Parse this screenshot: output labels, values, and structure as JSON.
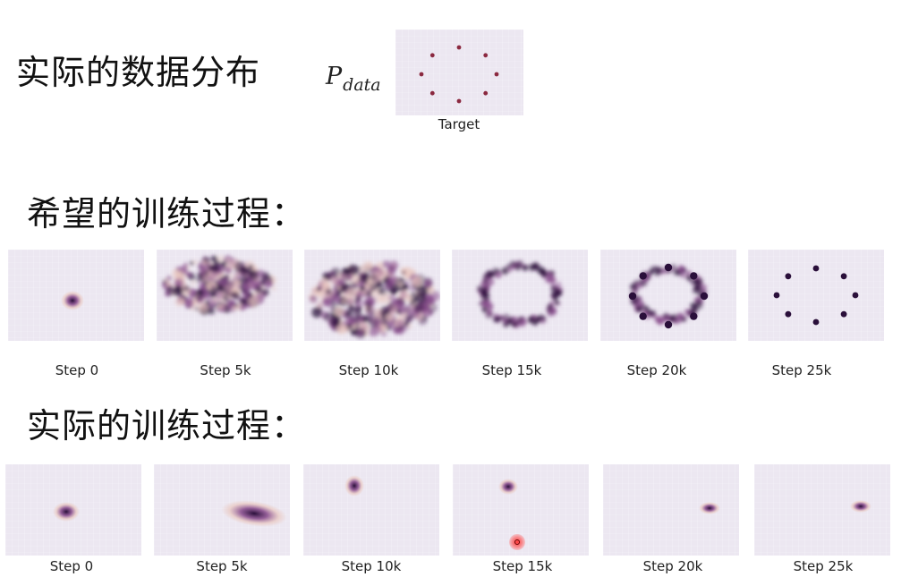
{
  "section_actual_distribution": {
    "heading": "实际的数据分布",
    "pdata_symbol": "P",
    "pdata_subscript": "data",
    "target_caption": "Target"
  },
  "section_expected": {
    "heading": "希望的训练过程：",
    "steps": [
      "Step 0",
      "Step 5k",
      "Step 10k",
      "Step 15k",
      "Step 20k",
      "Step 25k"
    ]
  },
  "section_actual": {
    "heading": "实际的训练过程：",
    "steps": [
      "Step 0",
      "Step 5k",
      "Step 10k",
      "Step 15k",
      "Step 20k",
      "Step 25k"
    ]
  },
  "colors": {
    "panel_background": "#ece7f1",
    "density_dark": "#2a0f3a",
    "density_mid": "#8a4f8e",
    "density_light": "#e9c7bf",
    "cursor_highlight": "#ff3b3b"
  }
}
